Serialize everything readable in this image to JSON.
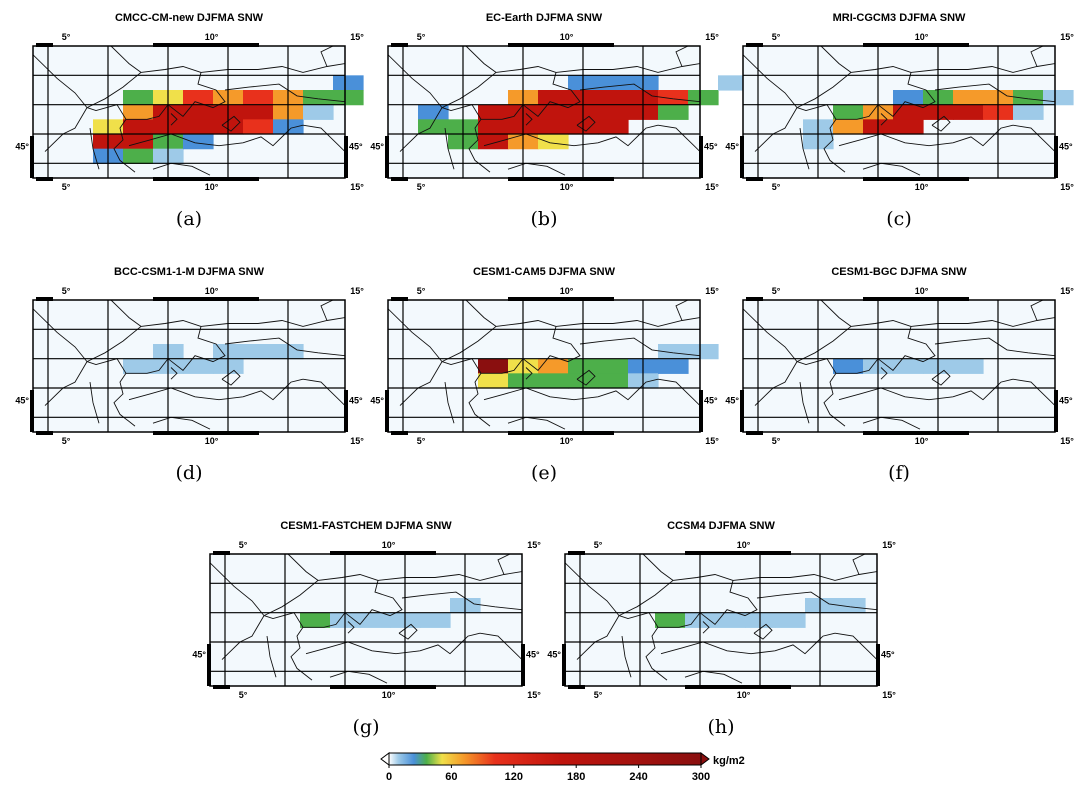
{
  "figure": {
    "panels": [
      {
        "label": "(a)",
        "title": "CMCC-CM-new DJFMA SNW",
        "right_lat_label": "45°"
      },
      {
        "label": "(b)",
        "title": "EC-Earth DJFMA SNW",
        "right_lat_label": "45°"
      },
      {
        "label": "(c)",
        "title": "MRI-CGCM3 DJFMA SNW",
        "right_lat_label": "45°"
      },
      {
        "label": "(d)",
        "title": "BCC-CSM1-1-M DJFMA SNW",
        "right_lat_label": "45°"
      },
      {
        "label": "(e)",
        "title": "CESM1-CAM5 DJFMA SNW",
        "right_lat_label": "45°"
      },
      {
        "label": "(f)",
        "title": "CESM1-BGC DJFMA SNW",
        "right_lat_label": "45°"
      },
      {
        "label": "(g)",
        "title": "CESM1-FASTCHEM DJFMA SNW",
        "right_lat_label": "45°"
      },
      {
        "label": "(h)",
        "title": "CCSM4 DJFMA SNW",
        "right_lat_label": "45°"
      }
    ],
    "lon_ticks": [
      "5°",
      "10°",
      "15°"
    ],
    "lat_tick": "45°",
    "colorbar": {
      "ticks": [
        "0",
        "60",
        "120",
        "180",
        "240",
        "300"
      ],
      "unit": "kg/m2",
      "range": [
        0,
        300
      ],
      "colors": [
        "#ffffff",
        "#9ecae8",
        "#4a90d9",
        "#4daf4a",
        "#f0e04a",
        "#f59a2a",
        "#e8311c",
        "#c0140d",
        "#8a0f0f"
      ]
    }
  },
  "chart_data": [
    {
      "type": "heatmap",
      "title": "CMCC-CM-new DJFMA SNW",
      "label": "(a)",
      "variable": "SNW",
      "unit": "kg/m2",
      "lon_ticks": [
        5,
        10,
        15
      ],
      "lat_tick": 45,
      "cells": [
        [
          6,
          45.9,
          55
        ],
        [
          6,
          45.4,
          130
        ],
        [
          6,
          44.9,
          20
        ],
        [
          7,
          46.9,
          30
        ],
        [
          7,
          46.4,
          70
        ],
        [
          7,
          45.9,
          140
        ],
        [
          7,
          45.4,
          115
        ],
        [
          7,
          44.9,
          40
        ],
        [
          8,
          46.9,
          55
        ],
        [
          8,
          46.4,
          125
        ],
        [
          8,
          45.9,
          120
        ],
        [
          8,
          45.4,
          45
        ],
        [
          8,
          44.9,
          8
        ],
        [
          9,
          46.9,
          90
        ],
        [
          9,
          46.4,
          130
        ],
        [
          9,
          45.9,
          125
        ],
        [
          9,
          45.4,
          20
        ],
        [
          10,
          46.9,
          65
        ],
        [
          10,
          46.4,
          140
        ],
        [
          10,
          45.9,
          115
        ],
        [
          11,
          46.9,
          90
        ],
        [
          11,
          46.4,
          145
        ],
        [
          11,
          45.9,
          95
        ],
        [
          12,
          46.9,
          60
        ],
        [
          12,
          46.4,
          75
        ],
        [
          12,
          45.9,
          25
        ],
        [
          13,
          46.9,
          30
        ],
        [
          13,
          46.4,
          10
        ],
        [
          14,
          47.4,
          20
        ],
        [
          14,
          46.9,
          40
        ]
      ]
    },
    {
      "type": "heatmap",
      "title": "EC-Earth DJFMA SNW",
      "label": "(b)",
      "variable": "SNW",
      "unit": "kg/m2",
      "lon_ticks": [
        5,
        10,
        15
      ],
      "lat_tick": 45,
      "cells": [
        [
          5,
          46.4,
          20
        ],
        [
          5,
          45.9,
          30
        ],
        [
          6,
          45.9,
          35
        ],
        [
          6,
          45.4,
          40
        ],
        [
          7,
          46.4,
          130
        ],
        [
          7,
          45.9,
          140
        ],
        [
          7,
          45.4,
          120
        ],
        [
          8,
          46.9,
          60
        ],
        [
          8,
          46.4,
          135
        ],
        [
          8,
          45.9,
          140
        ],
        [
          8,
          45.4,
          65
        ],
        [
          9,
          46.9,
          130
        ],
        [
          9,
          46.4,
          145
        ],
        [
          9,
          45.9,
          135
        ],
        [
          9,
          45.4,
          50
        ],
        [
          10,
          47.4,
          20
        ],
        [
          10,
          46.9,
          135
        ],
        [
          10,
          46.4,
          140
        ],
        [
          10,
          45.9,
          125
        ],
        [
          11,
          47.4,
          25
        ],
        [
          11,
          46.9,
          140
        ],
        [
          11,
          46.4,
          145
        ],
        [
          11,
          45.9,
          130
        ],
        [
          12,
          47.4,
          20
        ],
        [
          12,
          46.9,
          125
        ],
        [
          12,
          46.4,
          130
        ],
        [
          13,
          46.9,
          90
        ],
        [
          13,
          46.4,
          35
        ],
        [
          14,
          46.9,
          40
        ],
        [
          15,
          47.4,
          15
        ]
      ]
    },
    {
      "type": "heatmap",
      "title": "MRI-CGCM3 DJFMA SNW",
      "label": "(c)",
      "variable": "SNW",
      "unit": "kg/m2",
      "lon_ticks": [
        5,
        10,
        15
      ],
      "lat_tick": 45,
      "cells": [
        [
          6,
          45.9,
          12
        ],
        [
          6,
          45.4,
          15
        ],
        [
          7,
          46.4,
          35
        ],
        [
          7,
          45.9,
          85
        ],
        [
          8,
          46.4,
          75
        ],
        [
          8,
          45.9,
          110
        ],
        [
          9,
          46.9,
          25
        ],
        [
          9,
          46.4,
          125
        ],
        [
          9,
          45.9,
          110
        ],
        [
          10,
          46.9,
          40
        ],
        [
          10,
          46.4,
          120
        ],
        [
          11,
          46.9,
          70
        ],
        [
          11,
          46.4,
          125
        ],
        [
          12,
          46.9,
          80
        ],
        [
          12,
          46.4,
          105
        ],
        [
          13,
          46.9,
          35
        ],
        [
          13,
          46.4,
          10
        ],
        [
          14,
          46.9,
          12
        ]
      ]
    },
    {
      "type": "heatmap",
      "title": "BCC-CSM1-1-M DJFMA SNW",
      "label": "(d)",
      "variable": "SNW",
      "unit": "kg/m2",
      "lon_ticks": [
        5,
        10,
        15
      ],
      "lat_tick": 45,
      "cells": [
        [
          7,
          46.4,
          8
        ],
        [
          8,
          46.9,
          8
        ],
        [
          8,
          46.4,
          10
        ],
        [
          9,
          46.4,
          12
        ],
        [
          10,
          46.9,
          8
        ],
        [
          10,
          46.4,
          10
        ],
        [
          11,
          46.9,
          8
        ],
        [
          12,
          46.9,
          6
        ]
      ]
    },
    {
      "type": "heatmap",
      "title": "CESM1-CAM5 DJFMA SNW",
      "label": "(e)",
      "variable": "SNW",
      "unit": "kg/m2",
      "lon_ticks": [
        5,
        10,
        15
      ],
      "lat_tick": 45,
      "cells": [
        [
          7,
          46.4,
          160
        ],
        [
          7,
          45.9,
          55
        ],
        [
          8,
          46.4,
          55
        ],
        [
          8,
          45.9,
          30
        ],
        [
          9,
          46.4,
          60
        ],
        [
          9,
          45.9,
          35
        ],
        [
          10,
          46.4,
          40
        ],
        [
          10,
          45.9,
          35
        ],
        [
          11,
          46.4,
          40
        ],
        [
          11,
          45.9,
          35
        ],
        [
          12,
          46.4,
          25
        ],
        [
          12,
          45.9,
          10
        ],
        [
          13,
          46.4,
          20
        ],
        [
          13,
          46.9,
          10
        ],
        [
          14,
          46.9,
          10
        ]
      ]
    },
    {
      "type": "heatmap",
      "title": "CESM1-BGC DJFMA SNW",
      "label": "(f)",
      "variable": "SNW",
      "unit": "kg/m2",
      "lon_ticks": [
        5,
        10,
        15
      ],
      "lat_tick": 45,
      "cells": [
        [
          7,
          46.4,
          28
        ],
        [
          8,
          46.4,
          15
        ],
        [
          9,
          46.4,
          12
        ],
        [
          10,
          46.4,
          10
        ],
        [
          11,
          46.4,
          8
        ]
      ]
    },
    {
      "type": "heatmap",
      "title": "CESM1-FASTCHEM DJFMA SNW",
      "label": "(g)",
      "variable": "SNW",
      "unit": "kg/m2",
      "lon_ticks": [
        5,
        10,
        15
      ],
      "lat_tick": 45,
      "cells": [
        [
          7,
          46.4,
          35
        ],
        [
          8,
          46.4,
          18
        ],
        [
          9,
          46.4,
          15
        ],
        [
          10,
          46.4,
          12
        ],
        [
          11,
          46.4,
          10
        ],
        [
          12,
          46.9,
          6
        ]
      ]
    },
    {
      "type": "heatmap",
      "title": "CCSM4 DJFMA SNW",
      "label": "(h)",
      "variable": "SNW",
      "unit": "kg/m2",
      "lon_ticks": [
        5,
        10,
        15
      ],
      "lat_tick": 45,
      "cells": [
        [
          7,
          46.4,
          35
        ],
        [
          8,
          46.4,
          18
        ],
        [
          9,
          46.4,
          15
        ],
        [
          10,
          46.4,
          12
        ],
        [
          11,
          46.4,
          10
        ],
        [
          12,
          46.9,
          8
        ],
        [
          13,
          46.9,
          6
        ]
      ]
    }
  ]
}
